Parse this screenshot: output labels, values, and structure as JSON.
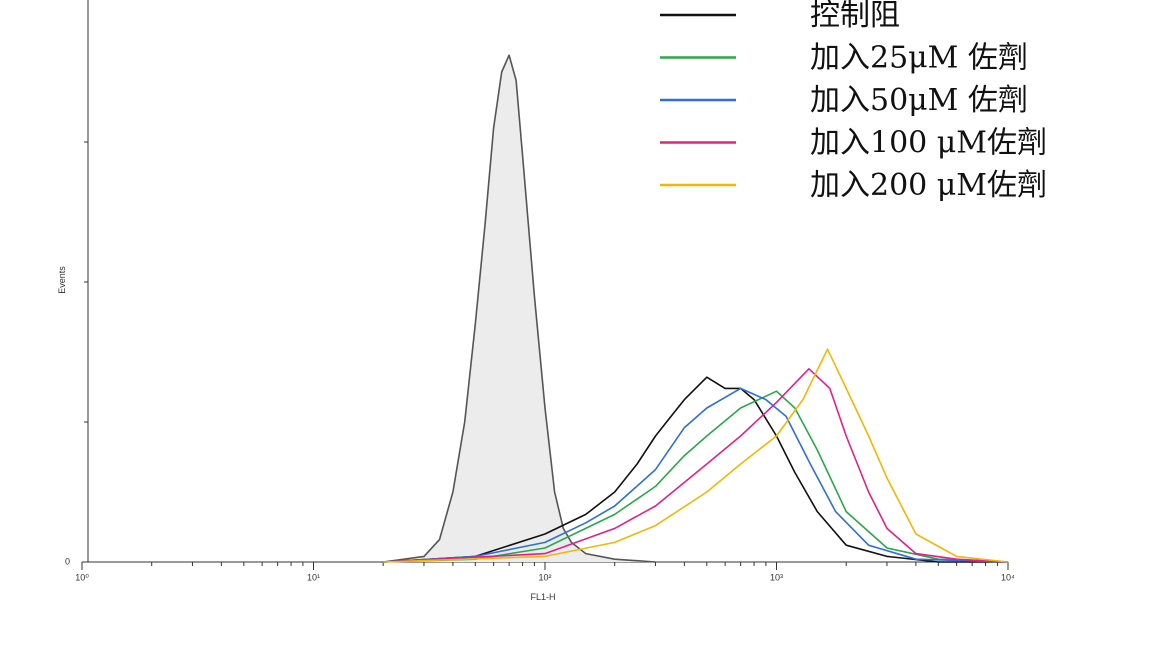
{
  "chart_data": {
    "type": "line",
    "x_label": "FL1-H",
    "y_label": "Events",
    "x_scale": "log",
    "xlim": [
      1,
      10000
    ],
    "xticks": [
      {
        "value": 1,
        "label": "10⁰"
      },
      {
        "value": 10,
        "label": "10¹"
      },
      {
        "value": 100,
        "label": "10²"
      },
      {
        "value": 1000,
        "label": "10³"
      },
      {
        "value": 10000,
        "label": "10⁴"
      }
    ],
    "xminor_ticks": [
      2,
      3,
      4,
      5,
      6,
      7,
      8,
      9,
      20,
      30,
      40,
      50,
      60,
      70,
      80,
      90,
      200,
      300,
      400,
      500,
      600,
      700,
      800,
      900,
      2000,
      3000,
      4000,
      5000,
      6000,
      7000,
      8000,
      9000
    ],
    "ylim": [
      0,
      200
    ],
    "yticks": [
      0
    ],
    "ytick_marks": [
      50,
      100,
      150
    ],
    "series": [
      {
        "color": "#555555",
        "fill": "#ececec",
        "x": [
          20,
          30,
          35,
          40,
          45,
          50,
          55,
          60,
          65,
          70,
          75,
          80,
          90,
          100,
          110,
          120,
          130,
          150,
          200,
          300
        ],
        "values": [
          0,
          2,
          8,
          25,
          50,
          85,
          120,
          155,
          175,
          181,
          172,
          145,
          95,
          55,
          25,
          12,
          7,
          3,
          1,
          0
        ]
      },
      {
        "name": "控制阻",
        "color": "#111111",
        "x": [
          20,
          50,
          100,
          150,
          200,
          250,
          300,
          350,
          400,
          500,
          600,
          700,
          800,
          1000,
          1200,
          1500,
          2000,
          3000,
          5000,
          10000
        ],
        "values": [
          0,
          2,
          10,
          17,
          25,
          35,
          45,
          52,
          58,
          66,
          62,
          62,
          58,
          45,
          32,
          18,
          6,
          2,
          0,
          0
        ]
      },
      {
        "name": "加入25μM 佐劑",
        "color": "#2aa84a",
        "x": [
          20,
          50,
          100,
          200,
          300,
          400,
          500,
          700,
          1000,
          1200,
          1500,
          2000,
          3000,
          5000,
          10000
        ],
        "values": [
          0,
          1,
          5,
          17,
          27,
          38,
          45,
          55,
          61,
          55,
          40,
          18,
          5,
          1,
          0
        ]
      },
      {
        "name": "加入50μM 佐劑",
        "color": "#2f6fd6",
        "x": [
          20,
          50,
          100,
          150,
          200,
          300,
          400,
          500,
          700,
          900,
          1100,
          1400,
          1800,
          2500,
          4000,
          10000
        ],
        "values": [
          0,
          2,
          7,
          14,
          20,
          33,
          48,
          55,
          62,
          58,
          52,
          35,
          18,
          6,
          1,
          0
        ]
      },
      {
        "name": "加入100 μM佐劑",
        "color": "#e0218a",
        "x": [
          20,
          100,
          200,
          300,
          500,
          700,
          1000,
          1380,
          1700,
          2000,
          2500,
          3000,
          4000,
          6000,
          10000
        ],
        "values": [
          0,
          3,
          12,
          20,
          35,
          45,
          57,
          69,
          62,
          45,
          25,
          12,
          3,
          1,
          0
        ]
      },
      {
        "name": "加入200 μM佐劑",
        "color": "#f2b705",
        "x": [
          20,
          100,
          200,
          300,
          500,
          700,
          1000,
          1300,
          1660,
          2000,
          2500,
          3000,
          4000,
          6000,
          10000
        ],
        "values": [
          0,
          2,
          7,
          13,
          25,
          35,
          45,
          58,
          76,
          62,
          45,
          30,
          10,
          2,
          0
        ]
      }
    ]
  }
}
